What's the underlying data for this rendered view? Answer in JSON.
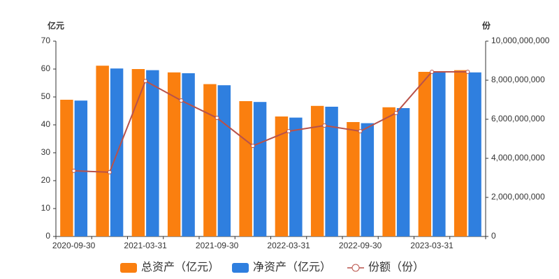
{
  "chart_data": {
    "type": "bar",
    "y_label": "亿元",
    "y2_label": "份",
    "categories": [
      "2020-09-30",
      null,
      "2021-03-31",
      null,
      "2021-09-30",
      null,
      "2022-03-31",
      null,
      "2022-09-30",
      null,
      "2023-03-31",
      null
    ],
    "series": [
      {
        "name": "总资产（亿元）",
        "type": "bar",
        "color": "#fa7f0f",
        "values": [
          49,
          61.2,
          60,
          58.8,
          54.6,
          48.5,
          43,
          46.8,
          41,
          46.3,
          59,
          59.6
        ]
      },
      {
        "name": "净资产（亿元）",
        "type": "bar",
        "color": "#2f7fdf",
        "values": [
          48.7,
          60.2,
          59.6,
          58.5,
          54.2,
          48.2,
          42.6,
          46.5,
          40.6,
          46,
          59,
          58.8
        ]
      },
      {
        "name": "份额（份）",
        "type": "line",
        "axis": "y2",
        "color": "#b9524a",
        "values": [
          3360000000,
          3290000000,
          7960000000,
          6960000000,
          6070000000,
          4640000000,
          5390000000,
          5680000000,
          5390000000,
          6320000000,
          8430000000,
          8430000000
        ]
      }
    ],
    "ylim": [
      0,
      70
    ],
    "yticks": [
      0,
      10,
      20,
      30,
      40,
      50,
      60,
      70
    ],
    "y2lim": [
      0,
      10000000000
    ],
    "y2ticks": [
      0,
      {
        "value": 2000000000,
        "label": "2,000,000,000"
      },
      {
        "value": 4000000000,
        "label": "4,000,000,000"
      },
      {
        "value": 6000000000,
        "label": "6,000,000,000"
      },
      {
        "value": 8000000000,
        "label": "8,000,000,000"
      },
      {
        "value": 10000000000,
        "label": "10,000,000,000"
      }
    ]
  }
}
